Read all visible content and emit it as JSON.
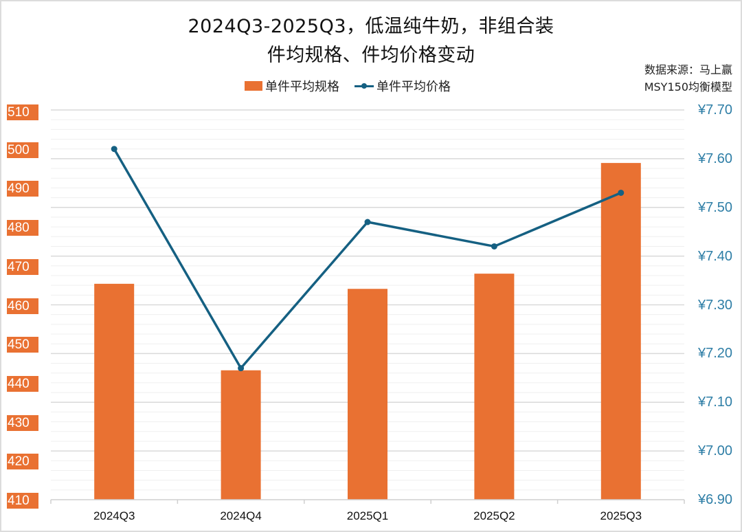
{
  "title": {
    "line1": "2024Q3-2025Q3，低温纯牛奶，非组合装",
    "line2": "件均规格、件均价格变动"
  },
  "source": {
    "line1": "数据来源：马上赢",
    "line2": "MSY150均衡模型"
  },
  "legend": {
    "bar_label": "单件平均规格",
    "line_label": "单件平均价格"
  },
  "colors": {
    "bar": "#e97132",
    "line": "#156082",
    "right_axis_text": "#2e7ea6",
    "grid": "#e6e6e6"
  },
  "axes": {
    "left_ticks": [
      "510",
      "500",
      "490",
      "480",
      "470",
      "460",
      "450",
      "440",
      "430",
      "420",
      "410"
    ],
    "right_ticks": [
      "¥7.70",
      "¥7.60",
      "¥7.50",
      "¥7.40",
      "¥7.30",
      "¥7.20",
      "¥7.10",
      "¥7.00",
      "¥6.90"
    ],
    "x_ticks": [
      "2024Q3",
      "2024Q4",
      "2025Q1",
      "2025Q2",
      "2025Q3"
    ]
  },
  "chart_data": {
    "type": "bar+line",
    "title": "2024Q3-2025Q3，低温纯牛奶，非组合装 件均规格、件均价格变动",
    "subtitle": "数据来源：马上赢 MSY150均衡模型",
    "categories": [
      "2024Q3",
      "2024Q4",
      "2025Q1",
      "2025Q2",
      "2025Q3"
    ],
    "series": [
      {
        "name": "单件平均规格",
        "type": "bar",
        "axis": "left",
        "values": [
          465.4,
          443.2,
          464.1,
          468.0,
          496.4
        ]
      },
      {
        "name": "单件平均价格",
        "type": "line",
        "axis": "right",
        "values": [
          7.62,
          7.17,
          7.47,
          7.42,
          7.53
        ]
      }
    ],
    "xlabel": "",
    "ylabel_left": "",
    "ylabel_right": "",
    "ylim_left": [
      410,
      510
    ],
    "ylim_right": [
      6.9,
      7.7
    ],
    "left_tick_step": 10,
    "right_tick_step": 0.1,
    "grid": true,
    "legend_position": "top"
  }
}
